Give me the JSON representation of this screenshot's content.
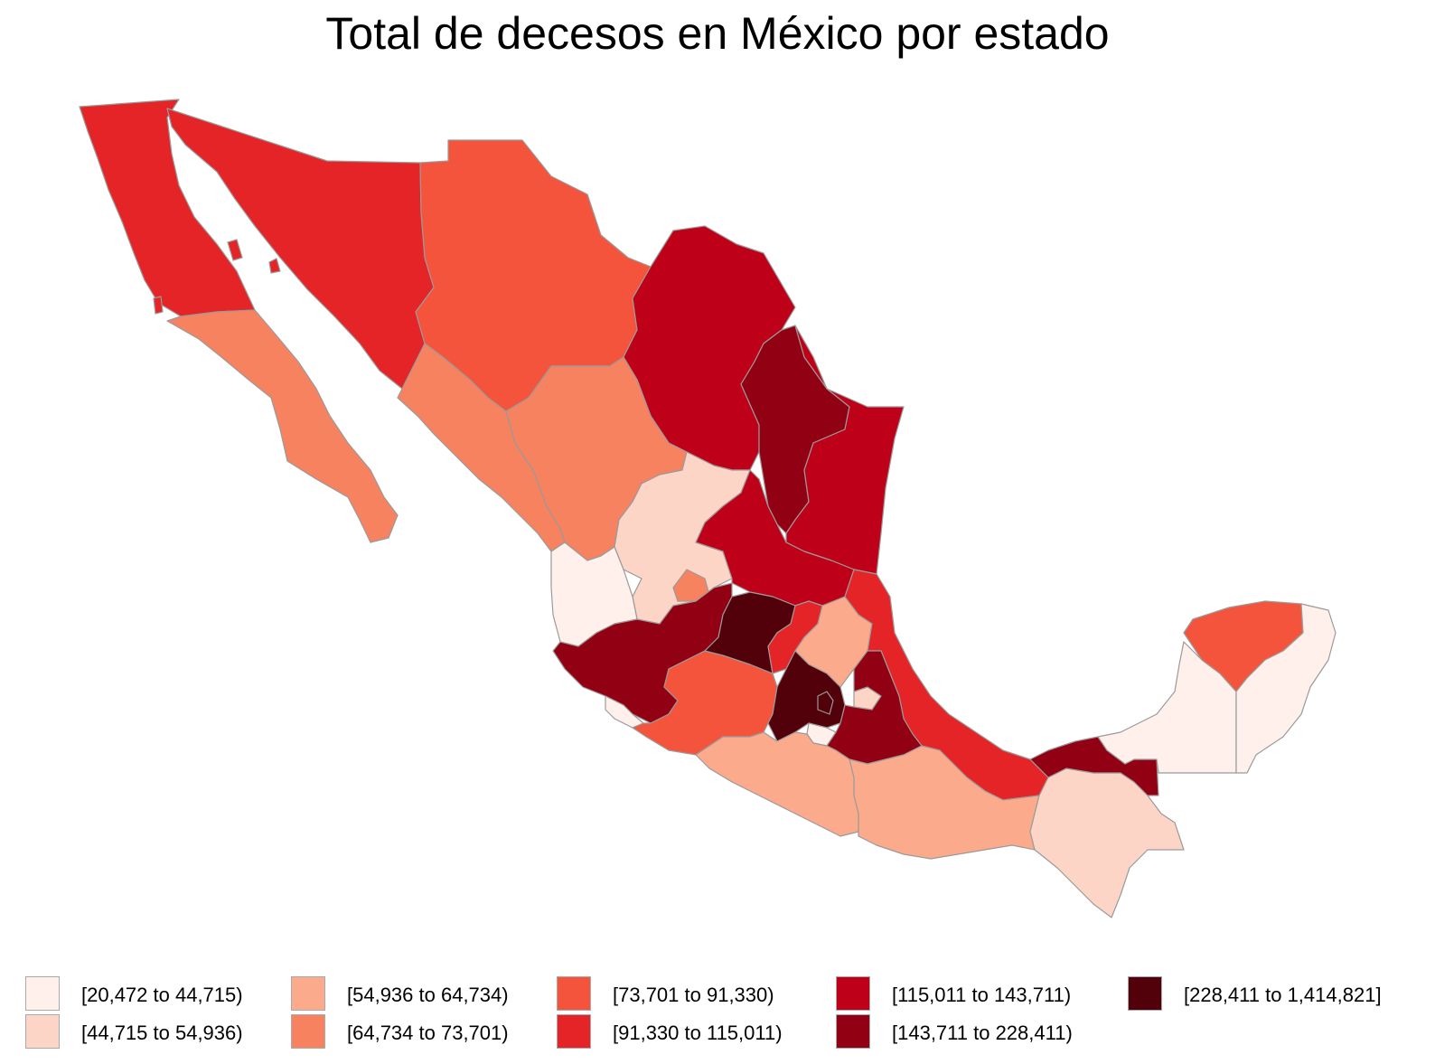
{
  "title": "Total de decesos en México por estado",
  "palette": {
    "c1": "#fff0eb",
    "c2": "#fdd5c6",
    "c3": "#fbab8c",
    "c4": "#f7825f",
    "c5": "#f5543c",
    "c6": "#e42426",
    "c7": "#bf0019",
    "c8": "#920013",
    "c9": "#520009"
  },
  "legend": [
    {
      "label": "[20,472 to 44,715)",
      "class": "c1"
    },
    {
      "label": "[44,715 to 54,936)",
      "class": "c2"
    },
    {
      "label": "[54,936 to 64,734)",
      "class": "c3"
    },
    {
      "label": "[64,734 to 73,701)",
      "class": "c4"
    },
    {
      "label": "[73,701 to 91,330)",
      "class": "c5"
    },
    {
      "label": "[91,330 to 115,011)",
      "class": "c6"
    },
    {
      "label": "[115,011 to 143,711)",
      "class": "c7"
    },
    {
      "label": "[143,711 to 228,411)",
      "class": "c8"
    },
    {
      "label": "[228,411 to 1,414,821]",
      "class": "c9"
    }
  ],
  "states": [
    {
      "name": "baja-california",
      "class": "c6"
    },
    {
      "name": "sonora",
      "class": "c6"
    },
    {
      "name": "chihuahua",
      "class": "c5"
    },
    {
      "name": "coahuila",
      "class": "c7"
    },
    {
      "name": "nuevo-leon",
      "class": "c8"
    },
    {
      "name": "tamaulipas",
      "class": "c7"
    },
    {
      "name": "baja-california-sur",
      "class": "c4"
    },
    {
      "name": "sinaloa",
      "class": "c4"
    },
    {
      "name": "durango",
      "class": "c4"
    },
    {
      "name": "zacatecas",
      "class": "c2"
    },
    {
      "name": "san-luis-potosi",
      "class": "c7"
    },
    {
      "name": "nayarit",
      "class": "c1"
    },
    {
      "name": "aguascalientes",
      "class": "c4"
    },
    {
      "name": "jalisco",
      "class": "c8"
    },
    {
      "name": "colima",
      "class": "c1"
    },
    {
      "name": "michoacan",
      "class": "c5"
    },
    {
      "name": "guanajuato",
      "class": "c9"
    },
    {
      "name": "queretaro",
      "class": "c6"
    },
    {
      "name": "hidalgo",
      "class": "c3"
    },
    {
      "name": "veracruz",
      "class": "c6"
    },
    {
      "name": "estado-de-mexico",
      "class": "c9"
    },
    {
      "name": "cdmx",
      "class": "c9"
    },
    {
      "name": "morelos",
      "class": "c1"
    },
    {
      "name": "tlaxcala",
      "class": "c2"
    },
    {
      "name": "puebla",
      "class": "c8"
    },
    {
      "name": "guerrero",
      "class": "c3"
    },
    {
      "name": "oaxaca",
      "class": "c3"
    },
    {
      "name": "chiapas",
      "class": "c2"
    },
    {
      "name": "tabasco",
      "class": "c8"
    },
    {
      "name": "campeche",
      "class": "c1"
    },
    {
      "name": "yucatan",
      "class": "c5"
    },
    {
      "name": "quintana-roo",
      "class": "c1"
    }
  ]
}
